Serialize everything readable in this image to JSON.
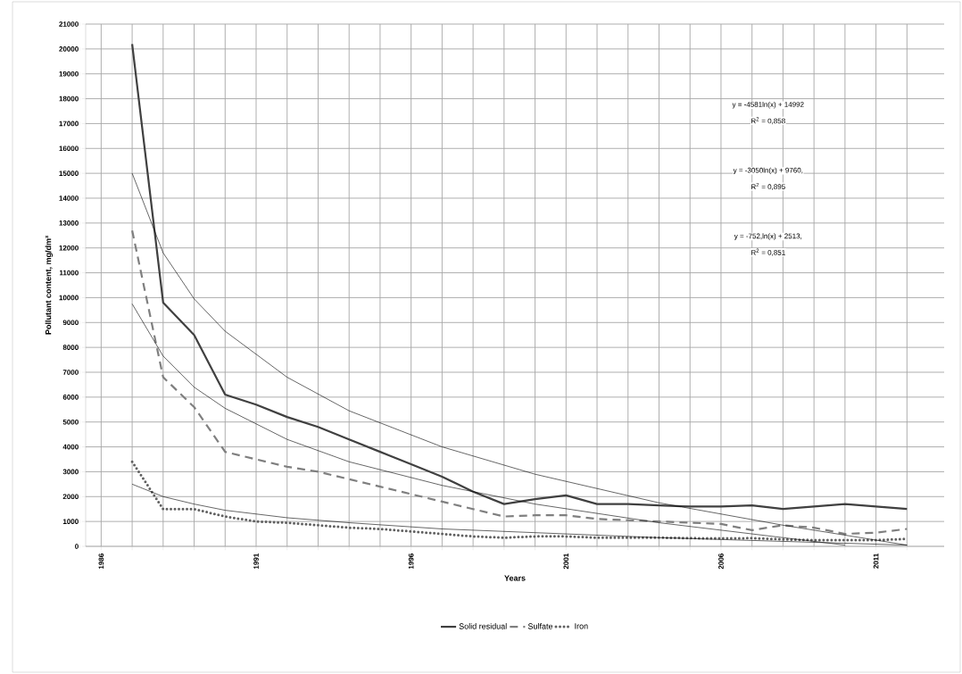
{
  "chart_data": {
    "type": "line",
    "xlabel": "Years",
    "ylabel": "Pollutant content, mg/dm³",
    "x": [
      1987,
      1988,
      1989,
      1990,
      1991,
      1992,
      1993,
      1994,
      1995,
      1996,
      1997,
      1998,
      1999,
      2000,
      2001,
      2002,
      2003,
      2004,
      2005,
      2006,
      2007,
      2008,
      2009,
      2010,
      2011,
      2012
    ],
    "series": [
      {
        "name": "Solid residual",
        "color": "#404040",
        "line_style": "solid",
        "values": [
          20200,
          9800,
          8500,
          6100,
          5700,
          5200,
          4800,
          4300,
          3800,
          3300,
          2800,
          2200,
          1700,
          1900,
          2050,
          1700,
          1700,
          1650,
          1600,
          1600,
          1650,
          1500,
          1600,
          1700,
          1600,
          1500
        ]
      },
      {
        "name": "Sulfate",
        "color": "#7f7f7f",
        "line_style": "dashed",
        "values": [
          12700,
          6800,
          5600,
          3800,
          3500,
          3200,
          3000,
          2700,
          2400,
          2100,
          1800,
          1500,
          1200,
          1250,
          1250,
          1100,
          1050,
          1000,
          950,
          900,
          650,
          850,
          750,
          500,
          550,
          700
        ]
      },
      {
        "name": "Iron",
        "color": "#606060",
        "line_style": "dotted",
        "values": [
          3400,
          1500,
          1500,
          1200,
          1000,
          950,
          850,
          750,
          700,
          600,
          500,
          400,
          350,
          400,
          400,
          350,
          350,
          350,
          330,
          320,
          330,
          280,
          250,
          250,
          250,
          300
        ]
      },
      {
        "type": "line",
        "color": "#000000",
        "line_style": "solid",
        "x": [
          1987,
          1988,
          1989,
          1990,
          1992,
          1994,
          1997,
          2000,
          2004,
          2008,
          2012
        ],
        "values": [
          15000,
          11800,
          9950,
          8650,
          6800,
          5450,
          4000,
          2900,
          1750,
          850,
          50
        ]
      },
      {
        "type": "line",
        "color": "#000000",
        "line_style": "solid",
        "x": [
          1987,
          1988,
          1989,
          1990,
          1992,
          1994,
          1997,
          2000,
          2004,
          2008,
          2010
        ],
        "values": [
          9750,
          7650,
          6400,
          5550,
          4300,
          3400,
          2450,
          1700,
          950,
          350,
          50
        ]
      },
      {
        "type": "line",
        "color": "#000000",
        "line_style": "solid",
        "x": [
          1987,
          1988,
          1989,
          1990,
          1992,
          1994,
          1997,
          2000,
          2004,
          2008,
          2012
        ],
        "values": [
          2500,
          2000,
          1700,
          1450,
          1150,
          950,
          700,
          550,
          350,
          200,
          50
        ]
      }
    ],
    "annotations": [
      "y = -4581ln(x) + 14992",
      "R$^{2}$ = 0,858",
      "y = -3050ln(x) + 9760,",
      "R$^{2}$ = 0,895",
      "y = -752,ln(x) + 2513,",
      "R$^{2}$ = 0,851"
    ],
    "xlim": [
      1985.5,
      2013.2
    ],
    "xticks": [
      1986,
      {
        "value": 1987,
        "label": null
      },
      {
        "value": 1988,
        "label": null
      },
      {
        "value": 1989,
        "label": null
      },
      {
        "value": 1990,
        "label": null
      },
      1991,
      {
        "value": 1992,
        "label": null
      },
      {
        "value": 1993,
        "label": null
      },
      {
        "value": 1994,
        "label": null
      },
      {
        "value": 1995,
        "label": null
      },
      1996,
      {
        "value": 1997,
        "label": null
      },
      {
        "value": 1998,
        "label": null
      },
      {
        "value": 1999,
        "label": null
      },
      {
        "value": 2000,
        "label": null
      },
      2001,
      {
        "value": 2002,
        "label": null
      },
      {
        "value": 2003,
        "label": null
      },
      {
        "value": 2004,
        "label": null
      },
      {
        "value": 2005,
        "label": null
      },
      2006,
      {
        "value": 2007,
        "label": null
      },
      {
        "value": 2008,
        "label": null
      },
      {
        "value": 2009,
        "label": null
      },
      {
        "value": 2010,
        "label": null
      },
      2011,
      {
        "value": 2012,
        "label": null
      }
    ],
    "ylim": [
      0,
      21000
    ],
    "yticks": [
      0,
      1000,
      2000,
      3000,
      4000,
      5000,
      6000,
      7000,
      8000,
      9000,
      10000,
      11000,
      12000,
      13000,
      14000,
      15000,
      16000,
      17000,
      18000,
      19000,
      20000,
      21000
    ],
    "grid": true,
    "legend": "bottom"
  }
}
